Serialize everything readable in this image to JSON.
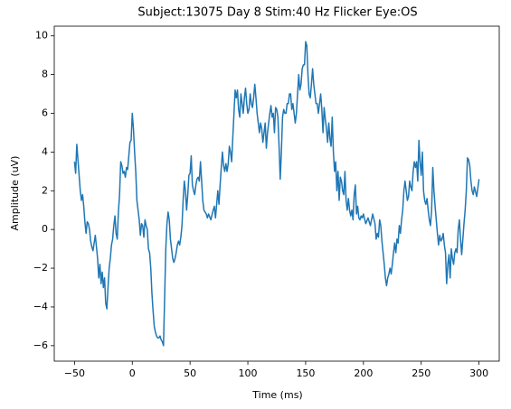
{
  "chart_data": {
    "type": "line",
    "title": "Subject:13075 Day 8 Stim:40 Hz Flicker Eye:OS",
    "x_label": "Time (ms)",
    "y_label": "Amplitude (uV)",
    "x": [
      -50,
      -49,
      -48,
      -47,
      -45,
      -44,
      -43,
      -42,
      -41,
      -40,
      -39,
      -38,
      -37,
      -36,
      -35,
      -34,
      -33,
      -32,
      -31,
      -30,
      -29,
      -28,
      -27,
      -26,
      -25,
      -24,
      -23,
      -22,
      -21,
      -20,
      -19,
      -18,
      -17,
      -16,
      -15,
      -14,
      -13,
      -12,
      -11,
      -10,
      -9,
      -8,
      -7,
      -6,
      -5,
      -4,
      -3,
      -2,
      -1,
      0,
      1,
      2,
      3,
      4,
      5,
      6,
      7,
      8,
      9,
      10,
      11,
      12,
      13,
      14,
      15,
      16,
      17,
      18,
      19,
      20,
      21,
      22,
      23,
      24,
      25,
      26,
      27,
      28,
      29,
      30,
      31,
      32,
      33,
      34,
      35,
      36,
      37,
      38,
      39,
      40,
      41,
      42,
      43,
      44,
      45,
      46,
      47,
      48,
      49,
      50,
      51,
      52,
      53,
      54,
      55,
      56,
      57,
      58,
      59,
      60,
      61,
      62,
      64,
      65,
      66,
      68,
      70,
      71,
      72,
      73,
      74,
      75,
      76,
      77,
      78,
      79,
      80,
      81,
      82,
      83,
      84,
      85,
      86,
      87,
      88,
      89,
      90,
      91,
      92,
      93,
      94,
      95,
      96,
      97,
      98,
      99,
      100,
      101,
      102,
      103,
      104,
      105,
      106,
      107,
      108,
      109,
      110,
      111,
      112,
      113,
      114,
      115,
      116,
      117,
      118,
      119,
      120,
      121,
      122,
      123,
      124,
      125,
      126,
      127,
      128,
      129,
      130,
      131,
      132,
      133,
      134,
      135,
      136,
      137,
      138,
      139,
      140,
      141,
      142,
      143,
      144,
      145,
      146,
      147,
      148,
      149,
      150,
      151,
      152,
      153,
      154,
      155,
      156,
      157,
      158,
      159,
      160,
      161,
      162,
      163,
      164,
      165,
      166,
      167,
      168,
      169,
      170,
      171,
      172,
      173,
      174,
      175,
      176,
      177,
      178,
      179,
      180,
      181,
      182,
      183,
      184,
      185,
      186,
      187,
      188,
      189,
      190,
      191,
      192,
      193,
      194,
      195,
      196,
      197,
      198,
      199,
      200,
      202,
      204,
      206,
      208,
      210,
      211,
      212,
      213,
      214,
      215,
      216,
      217,
      218,
      219,
      220,
      221,
      222,
      223,
      224,
      225,
      226,
      227,
      228,
      229,
      230,
      231,
      232,
      233,
      234,
      235,
      236,
      237,
      238,
      239,
      240,
      241,
      242,
      243,
      244,
      245,
      246,
      247,
      248,
      249,
      250,
      251,
      252,
      253,
      254,
      255,
      256,
      257,
      258,
      259,
      260,
      261,
      262,
      263,
      264,
      265,
      266,
      267,
      268,
      269,
      270,
      271,
      272,
      273,
      274,
      275,
      276,
      277,
      278,
      279,
      280,
      281,
      282,
      283,
      284,
      285,
      286,
      287,
      288,
      289,
      290,
      291,
      292,
      293,
      294,
      295,
      296,
      298,
      300
    ],
    "series": [
      {
        "color": "#1f77b4",
        "values": [
          3.5,
          2.9,
          4.4,
          3.6,
          2.0,
          1.5,
          1.8,
          1.2,
          0.4,
          -0.2,
          0.4,
          0.3,
          0.0,
          -0.6,
          -0.9,
          -1.1,
          -0.7,
          -0.3,
          -0.9,
          -1.5,
          -2.5,
          -1.8,
          -2.8,
          -2.2,
          -3.0,
          -2.5,
          -3.8,
          -4.1,
          -3.0,
          -2.0,
          -1.5,
          -0.8,
          -0.5,
          0.2,
          0.7,
          -0.2,
          -0.5,
          0.9,
          1.8,
          3.5,
          3.3,
          2.9,
          3.0,
          2.7,
          3.2,
          3.1,
          3.8,
          4.5,
          4.6,
          6.0,
          5.2,
          4.0,
          3.0,
          1.5,
          1.0,
          0.5,
          -0.3,
          0.3,
          0.2,
          -0.4,
          0.5,
          0.2,
          0.0,
          -1.0,
          -1.2,
          -2.0,
          -3.3,
          -4.2,
          -5.0,
          -5.3,
          -5.5,
          -5.6,
          -5.6,
          -5.5,
          -5.7,
          -5.8,
          -6.0,
          -3.5,
          -1.0,
          0.3,
          0.9,
          0.5,
          -0.5,
          -1.0,
          -1.5,
          -1.7,
          -1.5,
          -1.2,
          -0.8,
          -0.6,
          -0.8,
          -0.4,
          0.2,
          1.5,
          2.5,
          2.0,
          1.0,
          1.8,
          2.8,
          2.9,
          3.8,
          2.3,
          2.0,
          1.8,
          2.3,
          2.6,
          2.7,
          2.5,
          3.5,
          2.5,
          1.5,
          1.0,
          0.8,
          0.6,
          0.8,
          0.5,
          1.0,
          1.2,
          0.6,
          1.3,
          2.0,
          1.3,
          2.3,
          3.2,
          4.0,
          3.3,
          3.0,
          3.4,
          3.0,
          3.4,
          4.3,
          4.0,
          3.5,
          4.8,
          6.0,
          7.2,
          6.8,
          7.2,
          6.2,
          5.8,
          7.0,
          6.5,
          6.0,
          6.8,
          7.3,
          6.5,
          6.0,
          6.2,
          7.0,
          6.5,
          6.3,
          6.8,
          7.5,
          6.8,
          6.0,
          5.5,
          5.0,
          5.5,
          5.2,
          4.5,
          5.0,
          5.5,
          4.2,
          5.0,
          5.5,
          6.0,
          6.4,
          5.8,
          6.0,
          5.0,
          6.3,
          6.2,
          5.8,
          4.3,
          2.6,
          4.0,
          5.8,
          6.2,
          6.0,
          6.0,
          6.5,
          6.5,
          7.0,
          7.0,
          6.2,
          6.5,
          6.0,
          5.5,
          6.0,
          7.0,
          8.0,
          7.2,
          7.5,
          8.3,
          8.5,
          8.5,
          9.7,
          9.5,
          8.0,
          7.0,
          6.8,
          7.5,
          8.3,
          7.5,
          7.0,
          6.5,
          6.5,
          6.0,
          6.5,
          7.0,
          6.2,
          5.0,
          6.3,
          5.7,
          5.2,
          4.5,
          5.5,
          4.7,
          4.3,
          5.8,
          4.0,
          3.0,
          3.5,
          2.0,
          3.0,
          1.5,
          2.7,
          2.5,
          2.0,
          1.8,
          3.0,
          1.5,
          1.0,
          1.6,
          1.0,
          0.7,
          1.0,
          0.5,
          1.8,
          2.3,
          0.8,
          1.2,
          0.6,
          0.5,
          0.7,
          0.6,
          0.8,
          0.3,
          0.6,
          0.2,
          0.8,
          0.3,
          -0.5,
          -0.2,
          -0.4,
          0.5,
          0.2,
          -0.6,
          -1.2,
          -1.8,
          -2.5,
          -2.9,
          -2.5,
          -2.3,
          -2.0,
          -2.3,
          -1.8,
          -1.2,
          -0.7,
          -1.2,
          -0.5,
          -0.7,
          0.2,
          -0.2,
          0.5,
          1.0,
          2.0,
          2.5,
          2.0,
          1.5,
          1.7,
          2.5,
          2.2,
          2.0,
          3.0,
          3.5,
          3.2,
          3.5,
          2.5,
          4.6,
          3.5,
          2.8,
          4.0,
          2.0,
          1.5,
          1.3,
          1.6,
          1.0,
          0.5,
          0.2,
          1.0,
          3.2,
          2.0,
          1.2,
          0.5,
          -0.2,
          -0.8,
          -0.3,
          -0.6,
          -0.5,
          -0.2,
          -0.8,
          -1.2,
          -2.8,
          -1.8,
          -1.3,
          -2.5,
          -1.0,
          -1.5,
          -1.8,
          -1.2,
          -1.0,
          -1.2,
          0.0,
          0.5,
          -0.5,
          -1.3,
          -0.5,
          0.3,
          1.0,
          2.0,
          3.7,
          3.6,
          3.3,
          2.5,
          2.0,
          1.8,
          2.2,
          1.7,
          2.6
        ]
      }
    ],
    "xlim": [
      -67.5,
      317.5
    ],
    "xticks": [
      {
        "value": -50,
        "label": "−50"
      },
      0,
      50,
      100,
      150,
      200,
      250,
      300
    ],
    "ylim": [
      -6.8,
      10.5
    ],
    "yticks": [
      {
        "value": -6,
        "label": "−6"
      },
      {
        "value": -4,
        "label": "−4"
      },
      {
        "value": -2,
        "label": "−2"
      },
      0,
      2,
      4,
      6,
      8,
      10
    ],
    "grid": false
  }
}
